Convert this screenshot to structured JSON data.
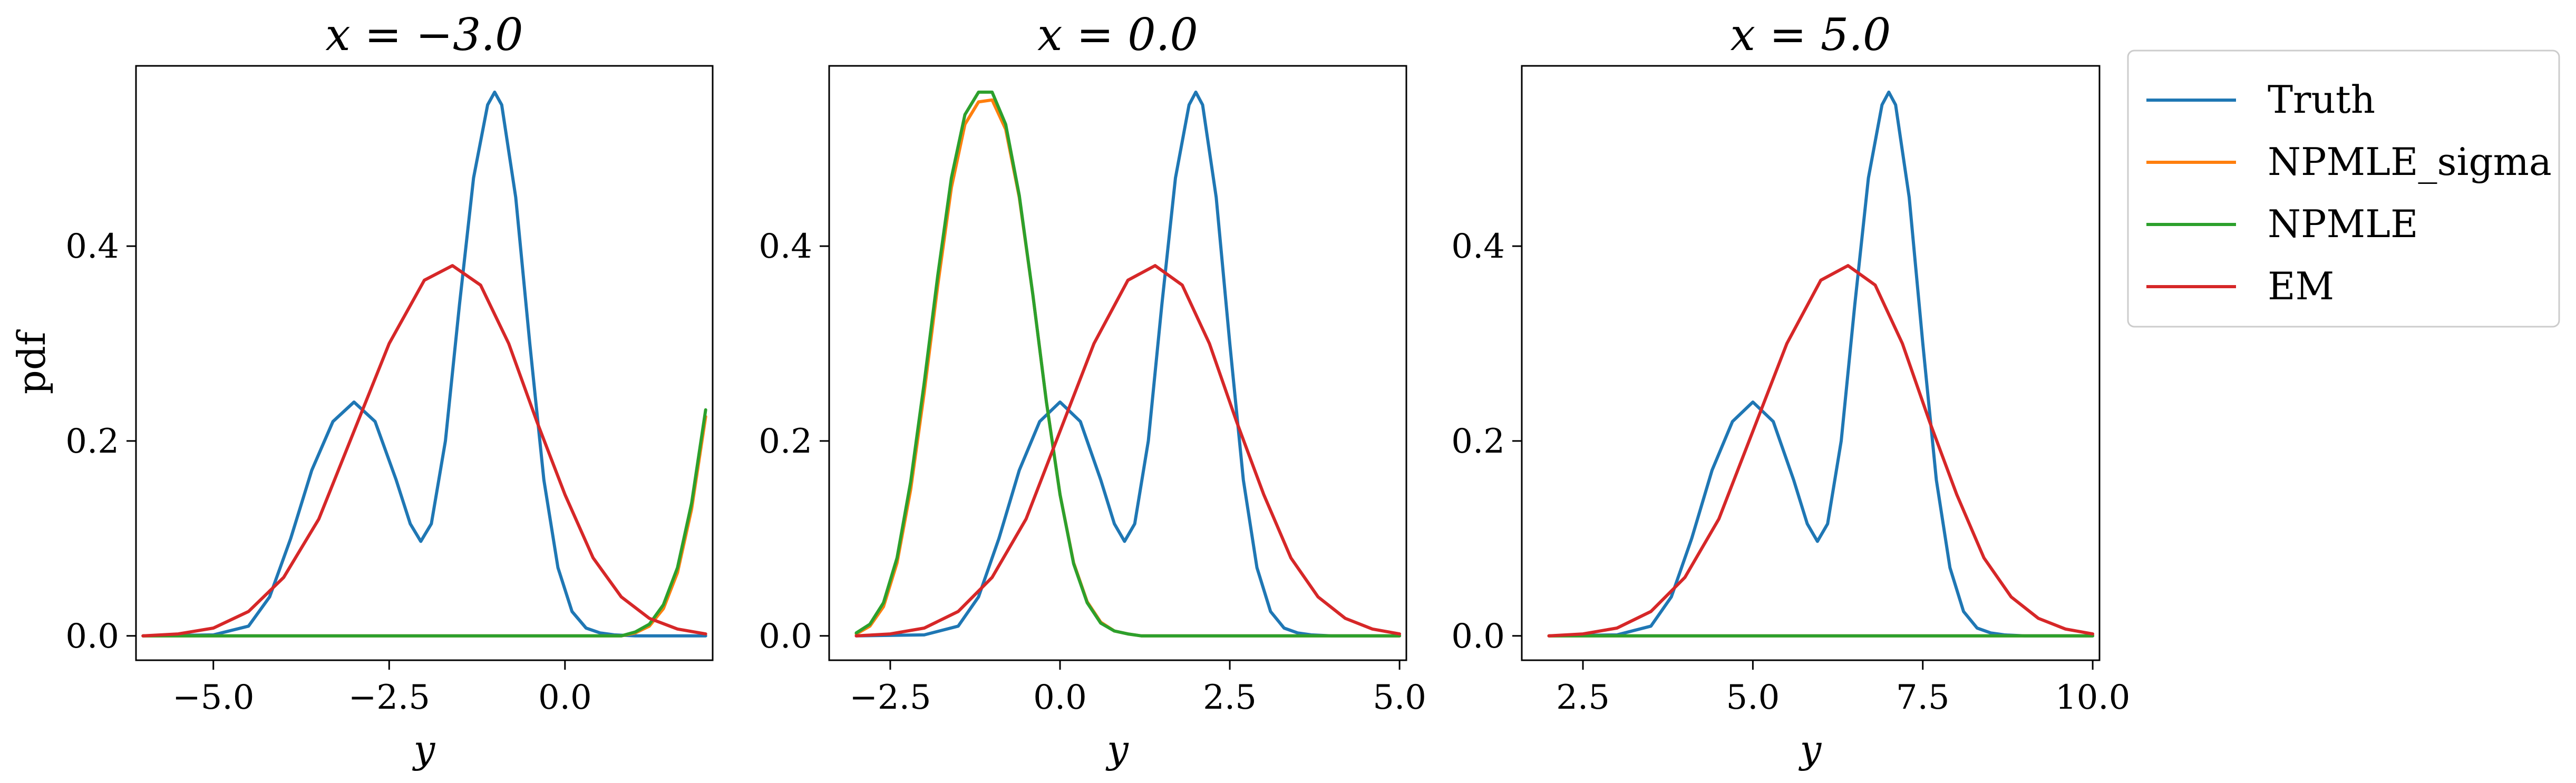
{
  "chart_data": [
    {
      "type": "line",
      "title": "x = −3.0",
      "xlabel": "y",
      "ylabel": "pdf",
      "xlim": [
        -6.1,
        2.1
      ],
      "ylim": [
        -0.025,
        0.585
      ],
      "xticks": [
        -5.0,
        -2.5,
        0.0
      ],
      "xtick_labels": [
        "−5.0",
        "−2.5",
        "0.0"
      ],
      "yticks": [
        0.0,
        0.2,
        0.4
      ],
      "ytick_labels": [
        "0.0",
        "0.2",
        "0.4"
      ],
      "grid": false,
      "series": [
        {
          "name": "Truth",
          "color": "#1f77b4",
          "x": [
            -6.0,
            -5.0,
            -4.5,
            -4.2,
            -3.9,
            -3.6,
            -3.3,
            -3.0,
            -2.7,
            -2.4,
            -2.2,
            -2.05,
            -1.9,
            -1.7,
            -1.5,
            -1.3,
            -1.1,
            -1.0,
            -0.9,
            -0.7,
            -0.5,
            -0.3,
            -0.1,
            0.1,
            0.3,
            0.5,
            0.7,
            1.0,
            1.5,
            2.0
          ],
          "y": [
            0.0,
            0.001,
            0.01,
            0.04,
            0.1,
            0.17,
            0.22,
            0.24,
            0.22,
            0.16,
            0.115,
            0.097,
            0.115,
            0.2,
            0.34,
            0.47,
            0.545,
            0.558,
            0.545,
            0.45,
            0.3,
            0.16,
            0.07,
            0.025,
            0.008,
            0.003,
            0.001,
            0.0,
            0.0,
            0.0
          ]
        },
        {
          "name": "NPMLE_sigma",
          "color": "#ff7f0e",
          "x": [
            -6.0,
            0.8,
            1.0,
            1.2,
            1.4,
            1.6,
            1.8,
            2.0
          ],
          "y": [
            0.0,
            0.0,
            0.003,
            0.01,
            0.028,
            0.065,
            0.13,
            0.225
          ]
        },
        {
          "name": "NPMLE",
          "color": "#2ca02c",
          "x": [
            -6.0,
            0.8,
            1.0,
            1.2,
            1.4,
            1.6,
            1.8,
            2.0
          ],
          "y": [
            0.0,
            0.0,
            0.004,
            0.012,
            0.032,
            0.07,
            0.136,
            0.232
          ]
        },
        {
          "name": "EM",
          "color": "#d62728",
          "x": [
            -6.0,
            -5.5,
            -5.0,
            -4.5,
            -4.0,
            -3.5,
            -3.0,
            -2.5,
            -2.0,
            -1.6,
            -1.2,
            -0.8,
            -0.4,
            0.0,
            0.4,
            0.8,
            1.2,
            1.6,
            2.0
          ],
          "y": [
            0.0,
            0.002,
            0.008,
            0.025,
            0.06,
            0.12,
            0.21,
            0.3,
            0.365,
            0.38,
            0.36,
            0.3,
            0.22,
            0.145,
            0.08,
            0.04,
            0.018,
            0.007,
            0.002
          ]
        }
      ]
    },
    {
      "type": "line",
      "title": "x = 0.0",
      "xlabel": "y",
      "ylabel": "",
      "xlim": [
        -3.4,
        5.1
      ],
      "ylim": [
        -0.025,
        0.585
      ],
      "xticks": [
        -2.5,
        0.0,
        2.5,
        5.0
      ],
      "xtick_labels": [
        "−2.5",
        "0.0",
        "2.5",
        "5.0"
      ],
      "yticks": [
        0.0,
        0.2,
        0.4
      ],
      "ytick_labels": [
        "0.0",
        "0.2",
        "0.4"
      ],
      "grid": false,
      "series": [
        {
          "name": "Truth",
          "color": "#1f77b4",
          "x": [
            -3.0,
            -2.0,
            -1.5,
            -1.2,
            -0.9,
            -0.6,
            -0.3,
            0.0,
            0.3,
            0.6,
            0.8,
            0.95,
            1.1,
            1.3,
            1.5,
            1.7,
            1.9,
            2.0,
            2.1,
            2.3,
            2.5,
            2.7,
            2.9,
            3.1,
            3.3,
            3.5,
            3.7,
            4.0,
            4.5,
            5.0
          ],
          "y": [
            0.0,
            0.001,
            0.01,
            0.04,
            0.1,
            0.17,
            0.22,
            0.24,
            0.22,
            0.16,
            0.115,
            0.097,
            0.115,
            0.2,
            0.34,
            0.47,
            0.545,
            0.558,
            0.545,
            0.45,
            0.3,
            0.16,
            0.07,
            0.025,
            0.008,
            0.003,
            0.001,
            0.0,
            0.0,
            0.0
          ]
        },
        {
          "name": "NPMLE_sigma",
          "color": "#ff7f0e",
          "x": [
            -3.0,
            -2.8,
            -2.6,
            -2.4,
            -2.2,
            -2.0,
            -1.8,
            -1.6,
            -1.4,
            -1.2,
            -1.0,
            -0.8,
            -0.6,
            -0.4,
            -0.2,
            0.0,
            0.2,
            0.4,
            0.6,
            0.8,
            1.0,
            1.2,
            1.5,
            2.0,
            3.0,
            5.0
          ],
          "y": [
            0.002,
            0.01,
            0.03,
            0.075,
            0.15,
            0.25,
            0.36,
            0.46,
            0.525,
            0.548,
            0.55,
            0.52,
            0.45,
            0.35,
            0.24,
            0.145,
            0.075,
            0.035,
            0.014,
            0.005,
            0.002,
            0.0,
            0.0,
            0.0,
            0.0,
            0.0
          ]
        },
        {
          "name": "NPMLE",
          "color": "#2ca02c",
          "x": [
            -3.0,
            -2.8,
            -2.6,
            -2.4,
            -2.2,
            -2.0,
            -1.8,
            -1.6,
            -1.4,
            -1.2,
            -1.0,
            -0.8,
            -0.6,
            -0.4,
            -0.2,
            0.0,
            0.2,
            0.4,
            0.6,
            0.8,
            1.0,
            1.2,
            1.5,
            2.0,
            3.0,
            5.0
          ],
          "y": [
            0.003,
            0.012,
            0.034,
            0.08,
            0.158,
            0.26,
            0.37,
            0.47,
            0.535,
            0.558,
            0.558,
            0.525,
            0.452,
            0.35,
            0.24,
            0.145,
            0.074,
            0.034,
            0.013,
            0.005,
            0.002,
            0.0,
            0.0,
            0.0,
            0.0,
            0.0
          ]
        },
        {
          "name": "EM",
          "color": "#d62728",
          "x": [
            -3.0,
            -2.5,
            -2.0,
            -1.5,
            -1.0,
            -0.5,
            0.0,
            0.5,
            1.0,
            1.4,
            1.8,
            2.2,
            2.6,
            3.0,
            3.4,
            3.8,
            4.2,
            4.6,
            5.0
          ],
          "y": [
            0.0,
            0.002,
            0.008,
            0.025,
            0.06,
            0.12,
            0.21,
            0.3,
            0.365,
            0.38,
            0.36,
            0.3,
            0.22,
            0.145,
            0.08,
            0.04,
            0.018,
            0.007,
            0.002
          ]
        }
      ]
    },
    {
      "type": "line",
      "title": "x = 5.0",
      "xlabel": "y",
      "ylabel": "",
      "xlim": [
        1.6,
        10.1
      ],
      "ylim": [
        -0.025,
        0.585
      ],
      "xticks": [
        2.5,
        5.0,
        7.5,
        10.0
      ],
      "xtick_labels": [
        "2.5",
        "5.0",
        "7.5",
        "10.0"
      ],
      "yticks": [
        0.0,
        0.2,
        0.4
      ],
      "ytick_labels": [
        "0.0",
        "0.2",
        "0.4"
      ],
      "grid": false,
      "series": [
        {
          "name": "Truth",
          "color": "#1f77b4",
          "x": [
            2.0,
            3.0,
            3.5,
            3.8,
            4.1,
            4.4,
            4.7,
            5.0,
            5.3,
            5.6,
            5.8,
            5.95,
            6.1,
            6.3,
            6.5,
            6.7,
            6.9,
            7.0,
            7.1,
            7.3,
            7.5,
            7.7,
            7.9,
            8.1,
            8.3,
            8.5,
            8.7,
            9.0,
            9.5,
            10.0
          ],
          "y": [
            0.0,
            0.001,
            0.01,
            0.04,
            0.1,
            0.17,
            0.22,
            0.24,
            0.22,
            0.16,
            0.115,
            0.097,
            0.115,
            0.2,
            0.34,
            0.47,
            0.545,
            0.558,
            0.545,
            0.45,
            0.3,
            0.16,
            0.07,
            0.025,
            0.008,
            0.003,
            0.001,
            0.0,
            0.0,
            0.0
          ]
        },
        {
          "name": "NPMLE_sigma",
          "color": "#ff7f0e",
          "x": [
            2.0,
            10.0
          ],
          "y": [
            0.0,
            0.0
          ]
        },
        {
          "name": "NPMLE",
          "color": "#2ca02c",
          "x": [
            2.0,
            10.0
          ],
          "y": [
            0.0,
            0.0
          ]
        },
        {
          "name": "EM",
          "color": "#d62728",
          "x": [
            2.0,
            2.5,
            3.0,
            3.5,
            4.0,
            4.5,
            5.0,
            5.5,
            6.0,
            6.4,
            6.8,
            7.2,
            7.6,
            8.0,
            8.4,
            8.8,
            9.2,
            9.6,
            10.0
          ],
          "y": [
            0.0,
            0.002,
            0.008,
            0.025,
            0.06,
            0.12,
            0.21,
            0.3,
            0.365,
            0.38,
            0.36,
            0.3,
            0.22,
            0.145,
            0.08,
            0.04,
            0.018,
            0.007,
            0.002
          ]
        }
      ]
    }
  ],
  "legend": {
    "placement": "outside-right",
    "entries": [
      {
        "label": "Truth",
        "color": "#1f77b4"
      },
      {
        "label": "NPMLE_sigma",
        "color": "#ff7f0e"
      },
      {
        "label": "NPMLE",
        "color": "#2ca02c"
      },
      {
        "label": "EM",
        "color": "#d62728"
      }
    ]
  }
}
